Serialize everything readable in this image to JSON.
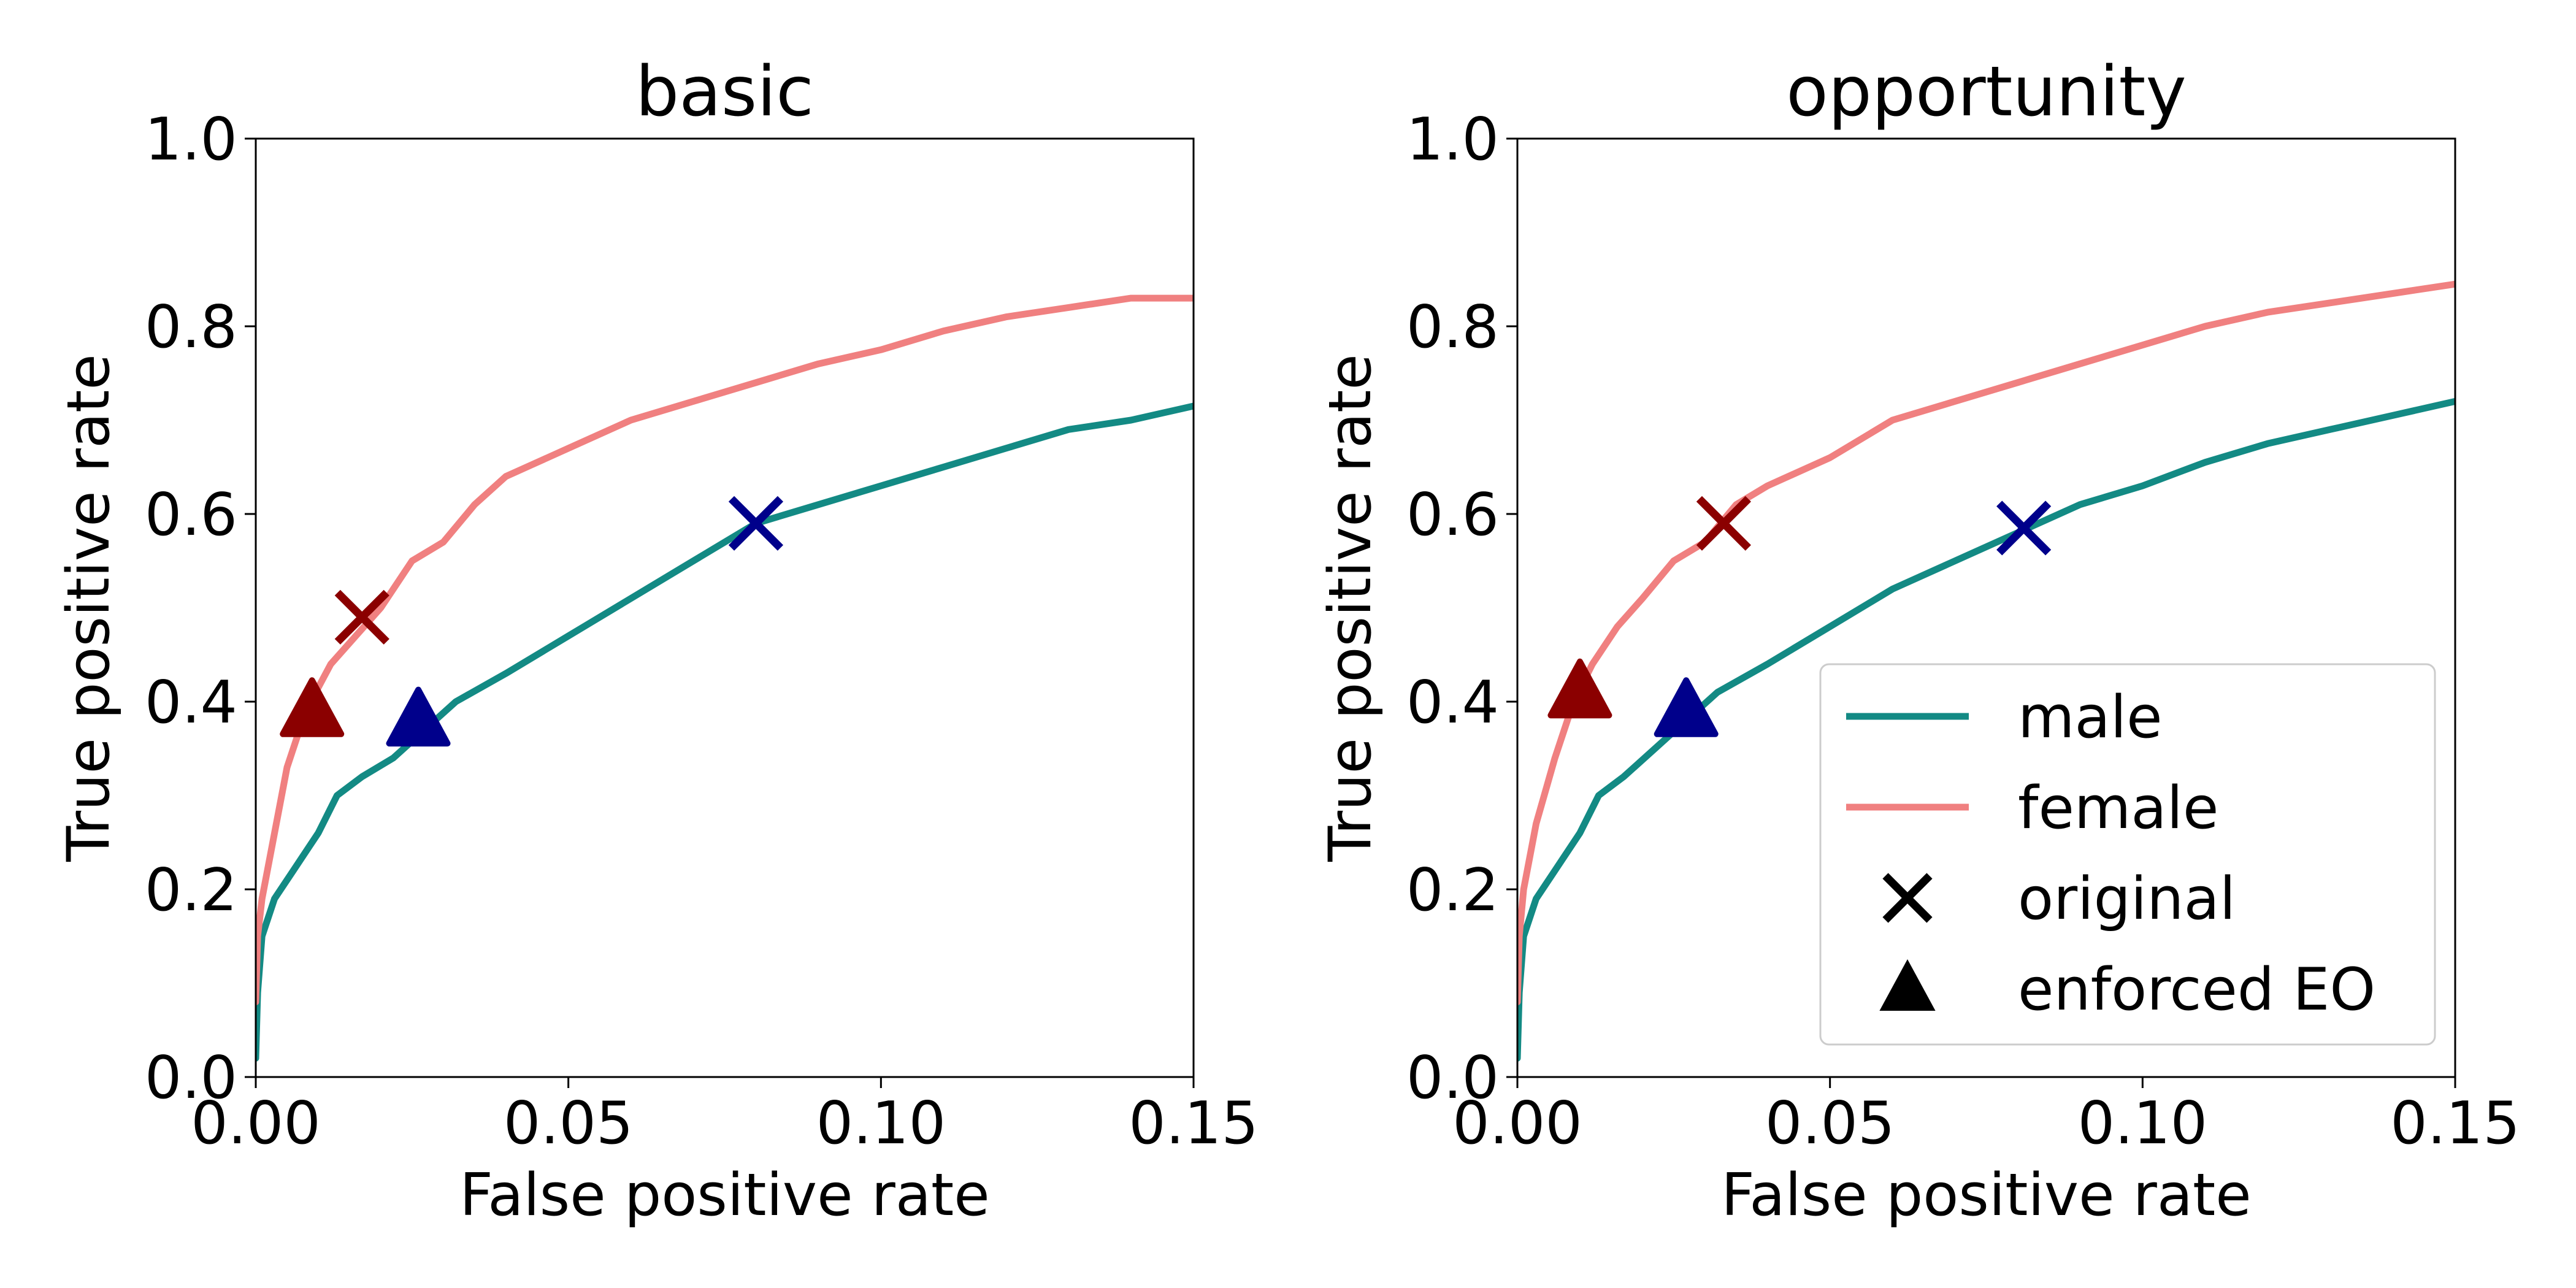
{
  "chart_data": [
    {
      "type": "line",
      "title": "basic",
      "xlabel": "False positive rate",
      "ylabel": "True positive rate",
      "xlim": [
        0,
        0.15
      ],
      "ylim": [
        0,
        1
      ],
      "xticks": [
        "0.00",
        "0.05",
        "0.10",
        "0.15"
      ],
      "yticks": [
        "0.0",
        "0.2",
        "0.4",
        "0.6",
        "0.8",
        "1.0"
      ],
      "series": [
        {
          "name": "male",
          "color": "#138a84",
          "points": [
            [
              0,
              0.02
            ],
            [
              0.0003,
              0.09
            ],
            [
              0.001,
              0.15
            ],
            [
              0.003,
              0.19
            ],
            [
              0.006,
              0.22
            ],
            [
              0.01,
              0.26
            ],
            [
              0.013,
              0.3
            ],
            [
              0.017,
              0.32
            ],
            [
              0.022,
              0.34
            ],
            [
              0.027,
              0.37
            ],
            [
              0.032,
              0.4
            ],
            [
              0.04,
              0.43
            ],
            [
              0.05,
              0.47
            ],
            [
              0.06,
              0.51
            ],
            [
              0.07,
              0.55
            ],
            [
              0.08,
              0.59
            ],
            [
              0.09,
              0.61
            ],
            [
              0.1,
              0.63
            ],
            [
              0.11,
              0.65
            ],
            [
              0.12,
              0.67
            ],
            [
              0.13,
              0.69
            ],
            [
              0.14,
              0.7
            ],
            [
              0.15,
              0.715
            ]
          ]
        },
        {
          "name": "female",
          "color": "#f08080",
          "points": [
            [
              0,
              0.08
            ],
            [
              0.0003,
              0.15
            ],
            [
              0.001,
              0.19
            ],
            [
              0.003,
              0.26
            ],
            [
              0.005,
              0.33
            ],
            [
              0.008,
              0.39
            ],
            [
              0.012,
              0.44
            ],
            [
              0.016,
              0.47
            ],
            [
              0.02,
              0.5
            ],
            [
              0.025,
              0.55
            ],
            [
              0.03,
              0.57
            ],
            [
              0.035,
              0.61
            ],
            [
              0.04,
              0.64
            ],
            [
              0.05,
              0.67
            ],
            [
              0.06,
              0.7
            ],
            [
              0.07,
              0.72
            ],
            [
              0.08,
              0.74
            ],
            [
              0.09,
              0.76
            ],
            [
              0.1,
              0.775
            ],
            [
              0.11,
              0.795
            ],
            [
              0.12,
              0.81
            ],
            [
              0.13,
              0.82
            ],
            [
              0.14,
              0.83
            ],
            [
              0.15,
              0.83
            ]
          ]
        }
      ],
      "markers": [
        {
          "kind": "x",
          "group": "female",
          "x": 0.017,
          "y": 0.49,
          "color": "#8b0000"
        },
        {
          "kind": "x",
          "group": "male",
          "x": 0.08,
          "y": 0.59,
          "color": "#00008b"
        },
        {
          "kind": "triangle",
          "group": "female",
          "x": 0.009,
          "y": 0.39,
          "color": "#8b0000"
        },
        {
          "kind": "triangle",
          "group": "male",
          "x": 0.026,
          "y": 0.38,
          "color": "#00008b"
        }
      ]
    },
    {
      "type": "line",
      "title": "opportunity",
      "xlabel": "False positive rate",
      "ylabel": "True positive rate",
      "xlim": [
        0,
        0.15
      ],
      "ylim": [
        0,
        1
      ],
      "xticks": [
        "0.00",
        "0.05",
        "0.10",
        "0.15"
      ],
      "yticks": [
        "0.0",
        "0.2",
        "0.4",
        "0.6",
        "0.8",
        "1.0"
      ],
      "series": [
        {
          "name": "male",
          "color": "#138a84",
          "points": [
            [
              0,
              0.02
            ],
            [
              0.0003,
              0.09
            ],
            [
              0.001,
              0.15
            ],
            [
              0.003,
              0.19
            ],
            [
              0.006,
              0.22
            ],
            [
              0.01,
              0.26
            ],
            [
              0.013,
              0.3
            ],
            [
              0.017,
              0.32
            ],
            [
              0.022,
              0.35
            ],
            [
              0.027,
              0.38
            ],
            [
              0.032,
              0.41
            ],
            [
              0.04,
              0.44
            ],
            [
              0.05,
              0.48
            ],
            [
              0.06,
              0.52
            ],
            [
              0.07,
              0.55
            ],
            [
              0.08,
              0.58
            ],
            [
              0.09,
              0.61
            ],
            [
              0.1,
              0.63
            ],
            [
              0.11,
              0.655
            ],
            [
              0.12,
              0.675
            ],
            [
              0.13,
              0.69
            ],
            [
              0.14,
              0.705
            ],
            [
              0.15,
              0.72
            ]
          ]
        },
        {
          "name": "female",
          "color": "#f08080",
          "points": [
            [
              0,
              0.08
            ],
            [
              0.0003,
              0.15
            ],
            [
              0.001,
              0.2
            ],
            [
              0.003,
              0.27
            ],
            [
              0.006,
              0.34
            ],
            [
              0.009,
              0.4
            ],
            [
              0.012,
              0.44
            ],
            [
              0.016,
              0.48
            ],
            [
              0.02,
              0.51
            ],
            [
              0.025,
              0.55
            ],
            [
              0.03,
              0.57
            ],
            [
              0.035,
              0.61
            ],
            [
              0.04,
              0.63
            ],
            [
              0.05,
              0.66
            ],
            [
              0.06,
              0.7
            ],
            [
              0.07,
              0.72
            ],
            [
              0.08,
              0.74
            ],
            [
              0.09,
              0.76
            ],
            [
              0.1,
              0.78
            ],
            [
              0.11,
              0.8
            ],
            [
              0.12,
              0.815
            ],
            [
              0.13,
              0.825
            ],
            [
              0.14,
              0.835
            ],
            [
              0.15,
              0.845
            ]
          ]
        }
      ],
      "markers": [
        {
          "kind": "x",
          "group": "female",
          "x": 0.033,
          "y": 0.59,
          "color": "#8b0000"
        },
        {
          "kind": "x",
          "group": "male",
          "x": 0.081,
          "y": 0.585,
          "color": "#00008b"
        },
        {
          "kind": "triangle",
          "group": "female",
          "x": 0.01,
          "y": 0.41,
          "color": "#8b0000"
        },
        {
          "kind": "triangle",
          "group": "male",
          "x": 0.027,
          "y": 0.39,
          "color": "#00008b"
        }
      ],
      "legend": {
        "placement": "lower-right",
        "entries": [
          {
            "label": "male",
            "kind": "line",
            "color": "#138a84"
          },
          {
            "label": "female",
            "kind": "line",
            "color": "#f08080"
          },
          {
            "label": "original",
            "kind": "x",
            "color": "#000000"
          },
          {
            "label": "enforced EO",
            "kind": "triangle",
            "color": "#000000"
          }
        ]
      }
    }
  ]
}
